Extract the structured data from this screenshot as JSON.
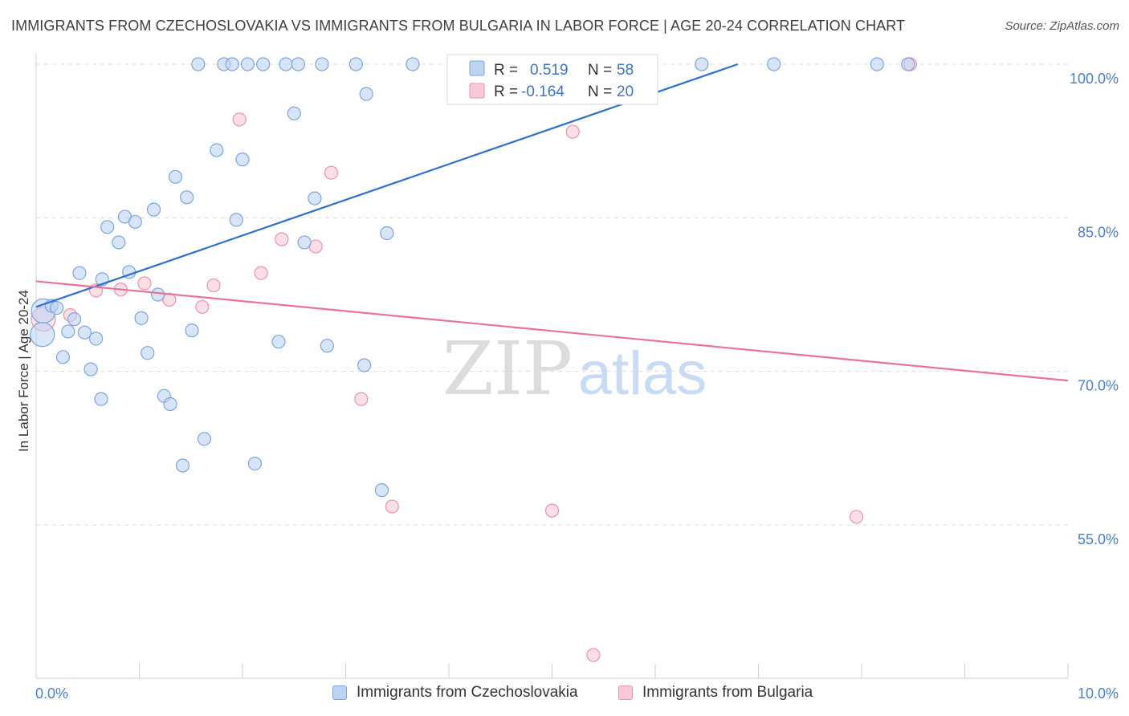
{
  "title": "IMMIGRANTS FROM CZECHOSLOVAKIA VS IMMIGRANTS FROM BULGARIA IN LABOR FORCE | AGE 20-24 CORRELATION CHART",
  "source": "Source: ZipAtlas.com",
  "watermark": {
    "zip": "ZIP",
    "atlas": "atlas"
  },
  "colors": {
    "blue_fill": "#bcd4f2",
    "blue_stroke": "#7aa6e0",
    "blue_line": "#2f6fd0",
    "pink_fill": "#f8c9d7",
    "pink_stroke": "#ec92ae",
    "pink_line": "#e8739a",
    "tick_text": "#4a7fd1",
    "grid": "#dcdcdc"
  },
  "legend": {
    "r_label": "R =",
    "n_label": "N =",
    "rows": [
      {
        "series": "czechoslovakia",
        "r": "0.519",
        "n": "58"
      },
      {
        "series": "bulgaria",
        "r": "-0.164",
        "n": "20"
      }
    ]
  },
  "chart_data": {
    "type": "scatter",
    "title": "IMMIGRANTS FROM CZECHOSLOVAKIA VS IMMIGRANTS FROM BULGARIA IN LABOR FORCE | AGE 20-24 CORRELATION CHART",
    "xlabel": "",
    "ylabel": "In Labor Force | Age 20-24",
    "xlim": [
      0,
      10
    ],
    "ylim": [
      40,
      101
    ],
    "x_tick_labels": [
      {
        "value": 0,
        "label": "0.0%"
      },
      {
        "value": 10,
        "label": "10.0%"
      }
    ],
    "y_tick_labels": [
      {
        "value": 100,
        "label": "100.0%"
      },
      {
        "value": 85,
        "label": "85.0%"
      },
      {
        "value": 70,
        "label": "70.0%"
      },
      {
        "value": 55,
        "label": "55.0%"
      }
    ],
    "grid": true,
    "series": [
      {
        "name": "Immigrants from Czechoslovakia",
        "color": "blue",
        "trend": {
          "x0": 0,
          "y0": 76.3,
          "x1": 6.8,
          "y1": 100
        },
        "points": [
          {
            "x": 0.06,
            "y": 73.6,
            "big": true
          },
          {
            "x": 0.07,
            "y": 75.9,
            "big": true
          },
          {
            "x": 0.15,
            "y": 76.4
          },
          {
            "x": 0.2,
            "y": 76.2
          },
          {
            "x": 0.26,
            "y": 71.4
          },
          {
            "x": 0.31,
            "y": 73.9
          },
          {
            "x": 0.37,
            "y": 75.1
          },
          {
            "x": 0.42,
            "y": 79.6
          },
          {
            "x": 0.47,
            "y": 73.8
          },
          {
            "x": 0.53,
            "y": 70.2
          },
          {
            "x": 0.58,
            "y": 73.2
          },
          {
            "x": 0.63,
            "y": 67.3
          },
          {
            "x": 0.64,
            "y": 79.0
          },
          {
            "x": 0.69,
            "y": 84.1
          },
          {
            "x": 0.8,
            "y": 82.6
          },
          {
            "x": 0.86,
            "y": 85.1
          },
          {
            "x": 0.9,
            "y": 79.7
          },
          {
            "x": 0.96,
            "y": 84.6
          },
          {
            "x": 1.02,
            "y": 75.2
          },
          {
            "x": 1.08,
            "y": 71.8
          },
          {
            "x": 1.14,
            "y": 85.8
          },
          {
            "x": 1.18,
            "y": 77.5
          },
          {
            "x": 1.24,
            "y": 67.6
          },
          {
            "x": 1.3,
            "y": 66.8
          },
          {
            "x": 1.35,
            "y": 89.0
          },
          {
            "x": 1.42,
            "y": 60.8
          },
          {
            "x": 1.46,
            "y": 87.0
          },
          {
            "x": 1.51,
            "y": 74.0
          },
          {
            "x": 1.57,
            "y": 100
          },
          {
            "x": 1.63,
            "y": 63.4
          },
          {
            "x": 1.75,
            "y": 91.6
          },
          {
            "x": 1.82,
            "y": 100
          },
          {
            "x": 1.9,
            "y": 100
          },
          {
            "x": 1.94,
            "y": 84.8
          },
          {
            "x": 2.0,
            "y": 90.7
          },
          {
            "x": 2.05,
            "y": 100
          },
          {
            "x": 2.12,
            "y": 61.0
          },
          {
            "x": 2.2,
            "y": 100
          },
          {
            "x": 2.35,
            "y": 72.9
          },
          {
            "x": 2.42,
            "y": 100
          },
          {
            "x": 2.5,
            "y": 95.2
          },
          {
            "x": 2.54,
            "y": 100
          },
          {
            "x": 2.6,
            "y": 82.6
          },
          {
            "x": 2.7,
            "y": 86.9
          },
          {
            "x": 2.77,
            "y": 100
          },
          {
            "x": 2.82,
            "y": 72.5
          },
          {
            "x": 3.1,
            "y": 100
          },
          {
            "x": 3.18,
            "y": 70.6
          },
          {
            "x": 3.2,
            "y": 97.1
          },
          {
            "x": 3.35,
            "y": 58.4
          },
          {
            "x": 3.4,
            "y": 83.5
          },
          {
            "x": 3.65,
            "y": 100
          },
          {
            "x": 4.3,
            "y": 100
          },
          {
            "x": 5.65,
            "y": 100
          },
          {
            "x": 6.45,
            "y": 100
          },
          {
            "x": 7.15,
            "y": 100
          },
          {
            "x": 8.15,
            "y": 100
          },
          {
            "x": 8.45,
            "y": 100
          }
        ]
      },
      {
        "name": "Immigrants from Bulgaria",
        "color": "pink",
        "trend": {
          "x0": 0,
          "y0": 78.8,
          "x1": 10,
          "y1": 69.1
        },
        "points": [
          {
            "x": 0.07,
            "y": 75.1,
            "big": true
          },
          {
            "x": 0.33,
            "y": 75.5
          },
          {
            "x": 0.58,
            "y": 77.9
          },
          {
            "x": 0.82,
            "y": 78.0
          },
          {
            "x": 1.05,
            "y": 78.6
          },
          {
            "x": 1.29,
            "y": 77.0
          },
          {
            "x": 1.61,
            "y": 76.3
          },
          {
            "x": 1.72,
            "y": 78.4
          },
          {
            "x": 1.97,
            "y": 94.6
          },
          {
            "x": 2.18,
            "y": 79.6
          },
          {
            "x": 2.38,
            "y": 82.9
          },
          {
            "x": 2.71,
            "y": 82.2
          },
          {
            "x": 2.86,
            "y": 89.4
          },
          {
            "x": 3.15,
            "y": 67.3
          },
          {
            "x": 3.45,
            "y": 56.8
          },
          {
            "x": 5.0,
            "y": 56.4
          },
          {
            "x": 5.2,
            "y": 93.4
          },
          {
            "x": 5.4,
            "y": 42.3
          },
          {
            "x": 7.95,
            "y": 55.8
          },
          {
            "x": 8.47,
            "y": 100
          }
        ]
      }
    ]
  }
}
